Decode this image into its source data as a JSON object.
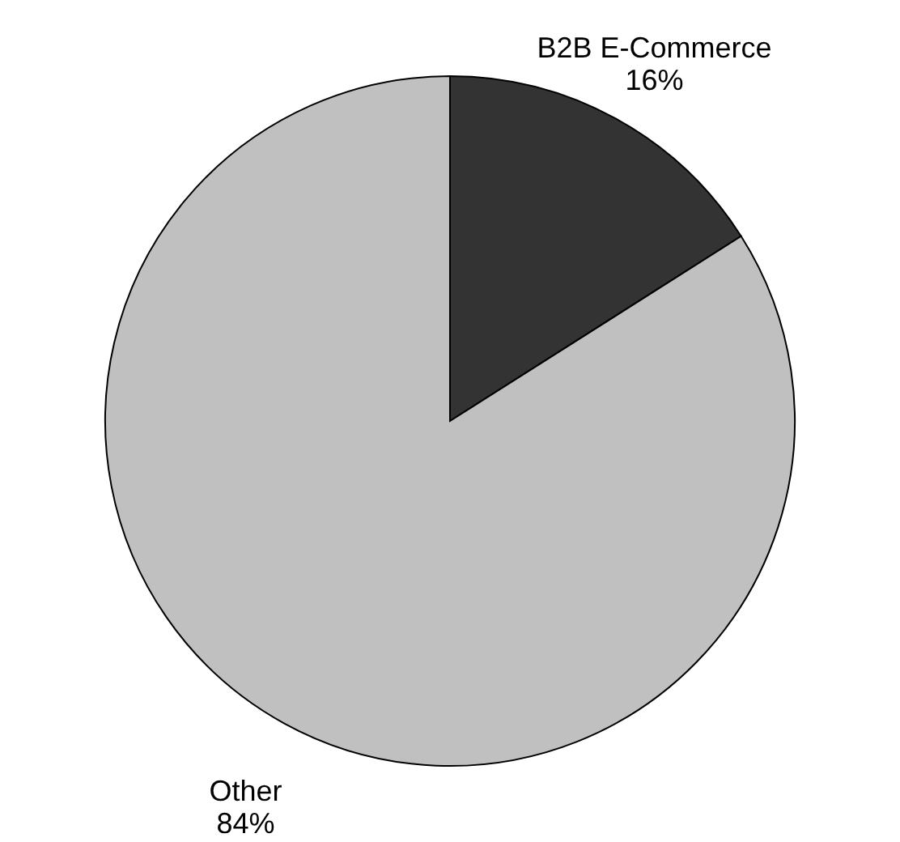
{
  "chart_data": {
    "type": "pie",
    "categories": [
      "B2B E-Commerce",
      "Other"
    ],
    "values": [
      16,
      84
    ],
    "colors": [
      "#333333",
      "#c0c0c0"
    ],
    "value_labels": [
      "16%",
      "84%"
    ],
    "legend": false
  }
}
